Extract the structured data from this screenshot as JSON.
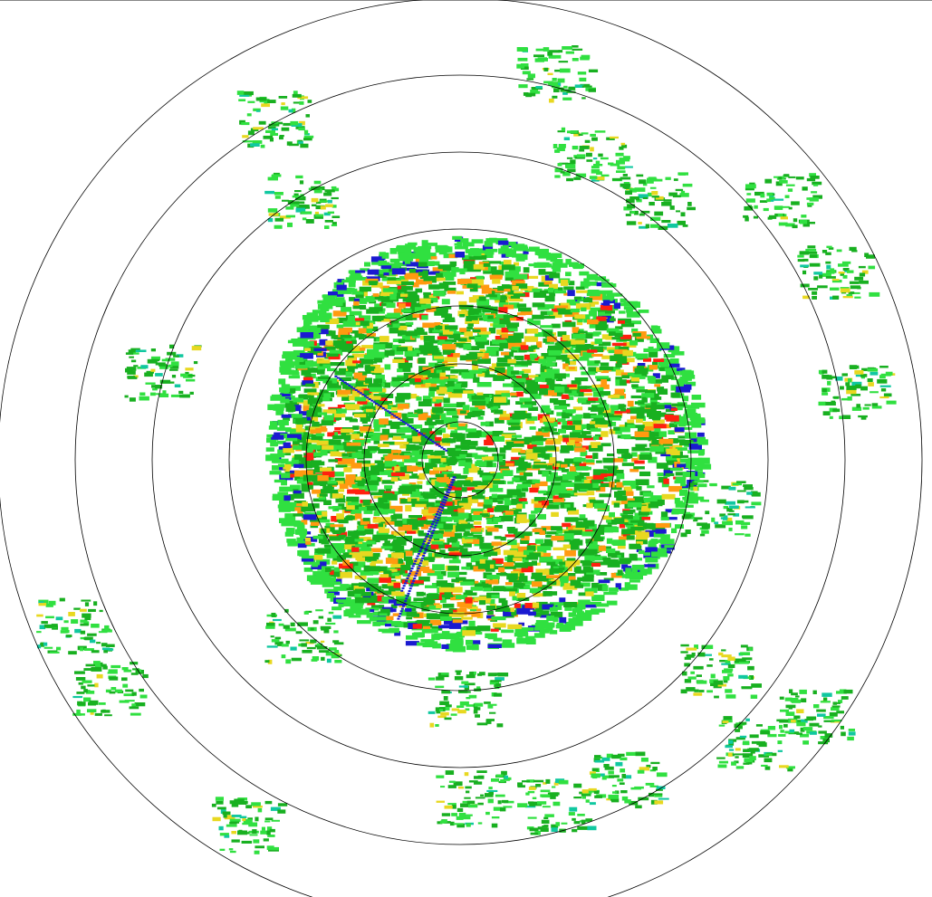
{
  "radar": {
    "type": "ppi-reflectivity",
    "range_rings": 7,
    "colors": {
      "ring": "#000000",
      "weak_blue": "#1a1ad0",
      "teal": "#10c8a0",
      "light_green": "#30e040",
      "green": "#18b020",
      "yellow": "#e8d820",
      "orange": "#ff9a10",
      "red": "#ff2010"
    }
  }
}
